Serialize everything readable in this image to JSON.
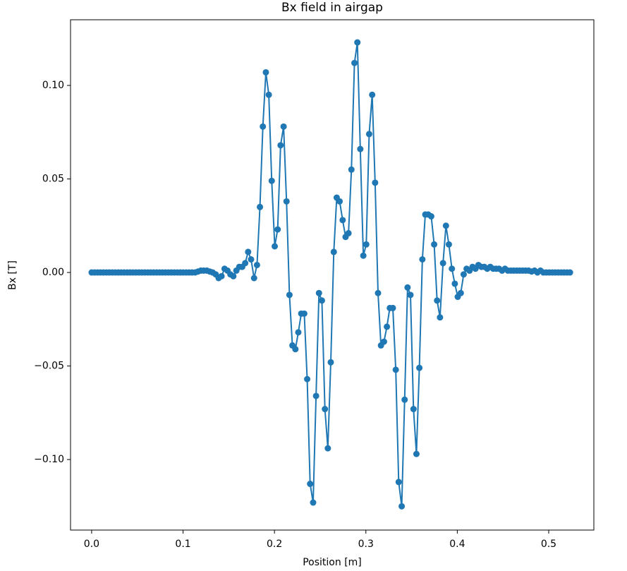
{
  "chart_data": {
    "type": "line",
    "title": "Bx field in airgap",
    "x_label": "Position [m]",
    "y_label": "Bx [T]",
    "color": "#1f77b4",
    "markers": true,
    "x": [
      0,
      0.0032,
      0.0065,
      0.0097,
      0.0129,
      0.0162,
      0.0194,
      0.0226,
      0.0258,
      0.0291,
      0.0323,
      0.0355,
      0.0388,
      0.042,
      0.0452,
      0.0485,
      0.0517,
      0.0549,
      0.0581,
      0.0614,
      0.0646,
      0.0678,
      0.0711,
      0.0743,
      0.0775,
      0.0808,
      0.084,
      0.0872,
      0.0904,
      0.0937,
      0.0969,
      0.1001,
      0.1034,
      0.1066,
      0.1098,
      0.1131,
      0.1163,
      0.1195,
      0.1227,
      0.126,
      0.1292,
      0.1324,
      0.1357,
      0.1389,
      0.1421,
      0.1454,
      0.1486,
      0.1518,
      0.155,
      0.1583,
      0.1615,
      0.1647,
      0.168,
      0.1712,
      0.1744,
      0.1777,
      0.1809,
      0.1841,
      0.1873,
      0.1906,
      0.1938,
      0.197,
      0.2003,
      0.2035,
      0.2067,
      0.21,
      0.2132,
      0.2164,
      0.2196,
      0.2229,
      0.2261,
      0.2293,
      0.2326,
      0.2358,
      0.239,
      0.2423,
      0.2455,
      0.2487,
      0.2519,
      0.2552,
      0.2584,
      0.2616,
      0.2649,
      0.2681,
      0.2713,
      0.2746,
      0.2778,
      0.281,
      0.2842,
      0.2875,
      0.2907,
      0.2939,
      0.2972,
      0.3004,
      0.3036,
      0.3069,
      0.3101,
      0.3133,
      0.3165,
      0.3198,
      0.323,
      0.3262,
      0.3295,
      0.3327,
      0.3359,
      0.3392,
      0.3424,
      0.3456,
      0.3488,
      0.3521,
      0.3553,
      0.3585,
      0.3618,
      0.365,
      0.3682,
      0.3715,
      0.3747,
      0.3779,
      0.3811,
      0.3844,
      0.3876,
      0.3908,
      0.3941,
      0.3973,
      0.4005,
      0.4038,
      0.407,
      0.4102,
      0.4134,
      0.4167,
      0.4199,
      0.4231,
      0.4264,
      0.4296,
      0.4328,
      0.4361,
      0.4393,
      0.4425,
      0.4457,
      0.449,
      0.4522,
      0.4554,
      0.4587,
      0.4619,
      0.4651,
      0.4684,
      0.4716,
      0.4748,
      0.478,
      0.4813,
      0.4845,
      0.4877,
      0.491,
      0.4942,
      0.4974,
      0.5007,
      0.5039,
      0.5071,
      0.5103,
      0.5136,
      0.5168,
      0.52,
      0.5233
    ],
    "values": [
      0,
      0,
      0,
      0,
      0,
      0,
      0,
      0,
      0,
      0,
      0,
      0,
      0,
      0,
      0,
      0,
      0,
      0,
      0,
      0,
      0,
      0,
      0,
      0,
      0,
      0,
      0,
      0,
      0,
      0,
      0,
      0,
      0,
      0,
      0,
      0,
      0.0005,
      0.001,
      0.001,
      0.001,
      0.0005,
      0,
      -0.001,
      -0.003,
      -0.002,
      0.002,
      0.001,
      -0.001,
      -0.002,
      0.001,
      0.003,
      0.003,
      0.005,
      0.011,
      0.007,
      -0.003,
      0.004,
      0.035,
      0.078,
      0.107,
      0.095,
      0.049,
      0.014,
      0.023,
      0.068,
      0.078,
      0.038,
      -0.012,
      -0.039,
      -0.041,
      -0.032,
      -0.022,
      -0.022,
      -0.057,
      -0.113,
      -0.123,
      -0.066,
      -0.011,
      -0.015,
      -0.073,
      -0.094,
      -0.048,
      0.011,
      0.04,
      0.038,
      0.028,
      0.019,
      0.021,
      0.055,
      0.112,
      0.123,
      0.066,
      0.009,
      0.015,
      0.074,
      0.095,
      0.048,
      -0.011,
      -0.039,
      -0.037,
      -0.029,
      -0.019,
      -0.019,
      -0.052,
      -0.112,
      -0.125,
      -0.068,
      -0.008,
      -0.012,
      -0.073,
      -0.097,
      -0.051,
      0.007,
      0.031,
      0.031,
      0.03,
      0.015,
      -0.015,
      -0.024,
      0.005,
      0.025,
      0.015,
      0.002,
      -0.006,
      -0.013,
      -0.011,
      -0.001,
      0.002,
      0.001,
      0.003,
      0.002,
      0.004,
      0.003,
      0.003,
      0.002,
      0.003,
      0.002,
      0.002,
      0.002,
      0.001,
      0.002,
      0.001,
      0.001,
      0.001,
      0.001,
      0.001,
      0.001,
      0.001,
      0.001,
      0.0005,
      0.001,
      0,
      0.001,
      0,
      0,
      0,
      0,
      0,
      0,
      0,
      0,
      0,
      0
    ],
    "xlim": [
      -0.0231,
      0.5494
    ],
    "ylim": [
      -0.1377,
      0.1351
    ],
    "xticks": [
      {
        "value": 0,
        "label": "0.0"
      },
      0.1,
      0.2,
      0.3,
      0.4,
      0.5
    ],
    "yticks": [
      {
        "value": -0.1,
        "label": "−0.10"
      },
      {
        "value": -0.05,
        "label": "−0.05"
      },
      {
        "value": 0,
        "label": "0.00"
      },
      {
        "value": 0.05,
        "label": "0.05"
      },
      {
        "value": 0.1,
        "label": "0.10"
      }
    ]
  }
}
